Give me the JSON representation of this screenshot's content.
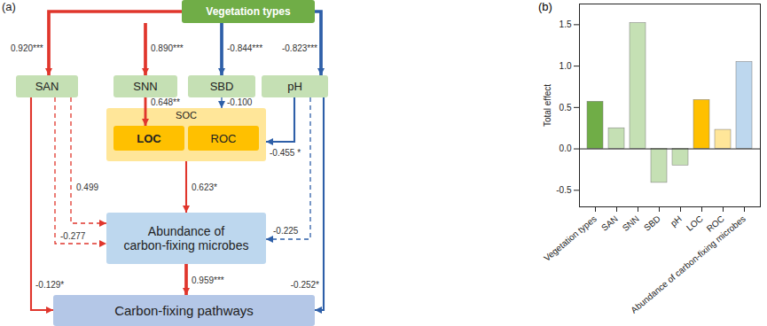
{
  "diagram": {
    "panel_label": "(a)",
    "nodes": [
      {
        "label": "Vegetation types"
      },
      {
        "label": "SAN"
      },
      {
        "label": "SNN"
      },
      {
        "label": "SBD"
      },
      {
        "label": "pH"
      },
      {
        "label": "SOC"
      },
      {
        "label": "LOC"
      },
      {
        "label": "ROC"
      },
      {
        "label": "Abundance of carbon-fixing microbes"
      },
      {
        "label": "Carbon-fixing pathways"
      }
    ],
    "edges": [
      {
        "from": "Vegetation types",
        "to": "SAN",
        "label": "0.920***",
        "color": "#e0362c",
        "line_style": "solid"
      },
      {
        "from": "Vegetation types",
        "to": "SNN",
        "label": "0.890***",
        "color": "#e0362c",
        "line_style": "solid"
      },
      {
        "from": "Vegetation types",
        "to": "SBD",
        "label": "-0.844***",
        "color": "#2e5fa8",
        "line_style": "solid"
      },
      {
        "from": "Vegetation types",
        "to": "pH",
        "label": "-0.823***",
        "color": "#2e5fa8",
        "line_style": "solid"
      },
      {
        "from": "SNN",
        "to": "LOC",
        "label": "0.648**",
        "color": "#e0362c",
        "line_style": "solid"
      },
      {
        "from": "SBD",
        "to": "SOC",
        "label": "-0.100",
        "color": "#2e5fa8",
        "line_style": "dashed"
      },
      {
        "from": "pH",
        "to": "SOC",
        "label": "-0.455 *",
        "color": "#2e5fa8",
        "line_style": "solid"
      },
      {
        "from": "SAN",
        "to": "Abundance of carbon-fixing microbes",
        "label": "0.499",
        "color": "#e0362c",
        "line_style": "dashed"
      },
      {
        "from": "SAN",
        "to": "Abundance of carbon-fixing microbes",
        "label": "-0.277",
        "color": "#e0362c",
        "line_style": "dashed"
      },
      {
        "from": "pH",
        "to": "Abundance of carbon-fixing microbes",
        "label": "-0.225",
        "color": "#2e5fa8",
        "line_style": "dashed"
      },
      {
        "from": "SOC",
        "to": "Abundance of carbon-fixing microbes",
        "label": "0.623*",
        "color": "#e0362c",
        "line_style": "solid"
      },
      {
        "from": "SAN",
        "to": "Carbon-fixing pathways",
        "label": "-0.129*",
        "color": "#e0362c",
        "line_style": "solid"
      },
      {
        "from": "pH",
        "to": "Carbon-fixing pathways",
        "label": "-0.252*",
        "color": "#2e5fa8",
        "line_style": "solid"
      },
      {
        "from": "Abundance of carbon-fixing microbes",
        "to": "Carbon-fixing pathways",
        "label": "0.959***",
        "color": "#e0362c",
        "line_style": "solid"
      }
    ]
  },
  "chart_data": {
    "panel_label": "(b)",
    "type": "bar",
    "categories": [
      "Vegetation types",
      "SAN",
      "SNN",
      "SBD",
      "pH",
      "LOC",
      "ROC",
      "Abundance of carbon-fixing microbes"
    ],
    "values": [
      0.57,
      0.25,
      1.52,
      -0.41,
      -0.2,
      0.59,
      0.23,
      1.05
    ],
    "colors": [
      "#70ad47",
      "#c5e0b4",
      "#c5e0b4",
      "#c5e0b4",
      "#c5e0b4",
      "#ffc000",
      "#ffe699",
      "#bdd7ee"
    ],
    "ylabel": "Total effect",
    "ylim": [
      -0.7,
      1.75
    ],
    "yticks": [
      -0.5,
      {
        "value": 0,
        "label": "0.0"
      },
      0.5,
      {
        "value": 1,
        "label": "1.0"
      },
      1.5
    ],
    "grid": false
  }
}
